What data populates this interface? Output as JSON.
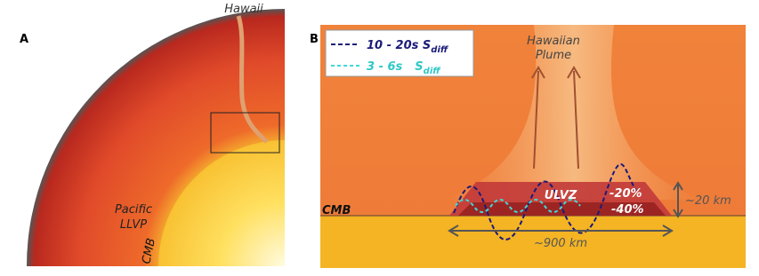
{
  "panel_a": {
    "label": "A",
    "hotspot": "Hawaii",
    "llvp": [
      "Pacific",
      "LLVP"
    ],
    "cmb": "CMB"
  },
  "panel_b": {
    "label": "B",
    "legend": [
      {
        "period": "10 - 20s",
        "symbol": "S",
        "subscript": "diff"
      },
      {
        "period": "3 - 6s",
        "symbol": "S",
        "subscript": "diff"
      }
    ],
    "plume": [
      "Hawaiian",
      "Plume"
    ],
    "ulvz": "ULVZ",
    "reductions": [
      "-20%",
      "-40%"
    ],
    "thickness": "~20 km",
    "width": "~900 km",
    "cmb": "CMB"
  }
}
